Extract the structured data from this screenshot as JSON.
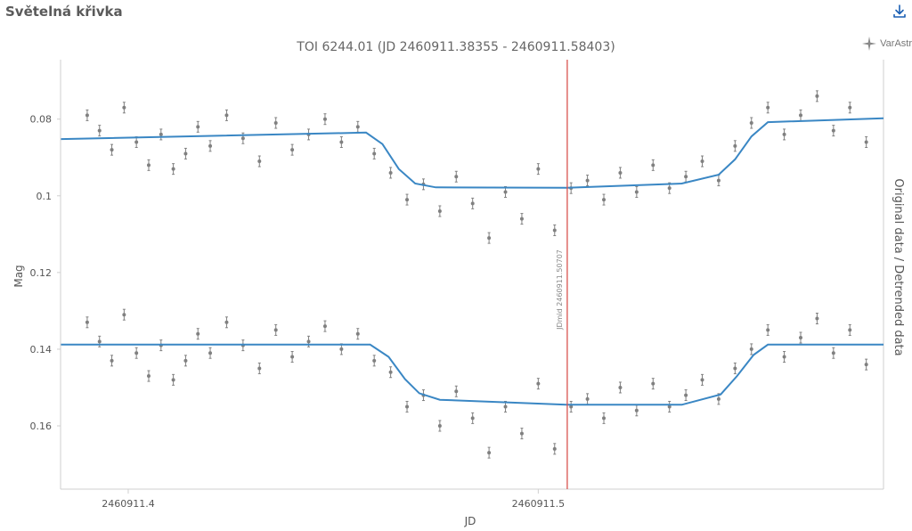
{
  "panel": {
    "title": "Světelná křivka",
    "download_icon": "download-icon"
  },
  "watermark": {
    "text": "VarAstr",
    "icon": "sparkle-star-icon"
  },
  "colors": {
    "points": "#808080",
    "model": "#3a87c4",
    "midline": "#d9534f",
    "axis_text": "#555555",
    "title_text": "#666666"
  },
  "chart_data": {
    "type": "scatter",
    "title": "TOI 6244.01 (JD 2460911.38355 - 2460911.58403)",
    "xlabel": "JD",
    "ylabel": "Mag",
    "y2label": "Original data / Detrended data",
    "xlim": [
      2460911.3835,
      2460911.5842
    ],
    "ylim": [
      0.0645,
      0.1765
    ],
    "y_inverted": true,
    "x_ticks": [
      2460911.4,
      2460911.5
    ],
    "x_tick_labels": [
      "2460911.4",
      "2460911.5"
    ],
    "y_ticks": [
      0.08,
      0.1,
      0.12,
      0.14,
      0.16
    ],
    "y_tick_labels": [
      "0.08",
      "0.1",
      "0.12",
      "0.14",
      "0.16"
    ],
    "grid": false,
    "error_bars": true,
    "mid_transit": {
      "x": 2460911.50707,
      "label": "JDmid 2460911.50707"
    },
    "series": [
      {
        "name": "Original data",
        "model": {
          "x": [
            2460911.3836,
            2460911.458,
            2460911.462,
            2460911.466,
            2460911.47,
            2460911.475,
            2460911.50707,
            2460911.535,
            2460911.544,
            2460911.548,
            2460911.552,
            2460911.556,
            2460911.5842
          ],
          "y": [
            0.0852,
            0.0835,
            0.0865,
            0.093,
            0.0968,
            0.0978,
            0.0979,
            0.0968,
            0.0945,
            0.0905,
            0.0845,
            0.0808,
            0.0798
          ]
        },
        "points": [
          {
            "x": 2460911.39,
            "y": 0.079
          },
          {
            "x": 2460911.393,
            "y": 0.083
          },
          {
            "x": 2460911.396,
            "y": 0.088
          },
          {
            "x": 2460911.399,
            "y": 0.077
          },
          {
            "x": 2460911.402,
            "y": 0.086
          },
          {
            "x": 2460911.405,
            "y": 0.092
          },
          {
            "x": 2460911.408,
            "y": 0.084
          },
          {
            "x": 2460911.411,
            "y": 0.093
          },
          {
            "x": 2460911.414,
            "y": 0.089
          },
          {
            "x": 2460911.417,
            "y": 0.082
          },
          {
            "x": 2460911.42,
            "y": 0.087
          },
          {
            "x": 2460911.424,
            "y": 0.079
          },
          {
            "x": 2460911.428,
            "y": 0.085
          },
          {
            "x": 2460911.432,
            "y": 0.091
          },
          {
            "x": 2460911.436,
            "y": 0.081
          },
          {
            "x": 2460911.44,
            "y": 0.088
          },
          {
            "x": 2460911.444,
            "y": 0.084
          },
          {
            "x": 2460911.448,
            "y": 0.08
          },
          {
            "x": 2460911.452,
            "y": 0.086
          },
          {
            "x": 2460911.456,
            "y": 0.082
          },
          {
            "x": 2460911.46,
            "y": 0.089
          },
          {
            "x": 2460911.464,
            "y": 0.094
          },
          {
            "x": 2460911.468,
            "y": 0.101
          },
          {
            "x": 2460911.472,
            "y": 0.097
          },
          {
            "x": 2460911.476,
            "y": 0.104
          },
          {
            "x": 2460911.48,
            "y": 0.095
          },
          {
            "x": 2460911.484,
            "y": 0.102
          },
          {
            "x": 2460911.488,
            "y": 0.111
          },
          {
            "x": 2460911.492,
            "y": 0.099
          },
          {
            "x": 2460911.496,
            "y": 0.106
          },
          {
            "x": 2460911.5,
            "y": 0.093
          },
          {
            "x": 2460911.504,
            "y": 0.109
          },
          {
            "x": 2460911.508,
            "y": 0.098
          },
          {
            "x": 2460911.512,
            "y": 0.096
          },
          {
            "x": 2460911.516,
            "y": 0.101
          },
          {
            "x": 2460911.52,
            "y": 0.094
          },
          {
            "x": 2460911.524,
            "y": 0.099
          },
          {
            "x": 2460911.528,
            "y": 0.092
          },
          {
            "x": 2460911.532,
            "y": 0.098
          },
          {
            "x": 2460911.536,
            "y": 0.095
          },
          {
            "x": 2460911.54,
            "y": 0.091
          },
          {
            "x": 2460911.544,
            "y": 0.096
          },
          {
            "x": 2460911.548,
            "y": 0.087
          },
          {
            "x": 2460911.552,
            "y": 0.081
          },
          {
            "x": 2460911.556,
            "y": 0.077
          },
          {
            "x": 2460911.56,
            "y": 0.084
          },
          {
            "x": 2460911.564,
            "y": 0.079
          },
          {
            "x": 2460911.568,
            "y": 0.074
          },
          {
            "x": 2460911.572,
            "y": 0.083
          },
          {
            "x": 2460911.576,
            "y": 0.077
          },
          {
            "x": 2460911.58,
            "y": 0.086
          }
        ]
      },
      {
        "name": "Detrended data",
        "model": {
          "x": [
            2460911.3836,
            2460911.459,
            2460911.4635,
            2460911.4675,
            2460911.471,
            2460911.476,
            2460911.50707,
            2460911.535,
            2460911.5445,
            2460911.5485,
            2460911.5525,
            2460911.556,
            2460911.5842
          ],
          "y": [
            0.1388,
            0.1388,
            0.142,
            0.1478,
            0.1515,
            0.1532,
            0.1545,
            0.1545,
            0.1518,
            0.147,
            0.1415,
            0.1388,
            0.1388
          ]
        },
        "points": [
          {
            "x": 2460911.39,
            "y": 0.133
          },
          {
            "x": 2460911.393,
            "y": 0.138
          },
          {
            "x": 2460911.396,
            "y": 0.143
          },
          {
            "x": 2460911.399,
            "y": 0.131
          },
          {
            "x": 2460911.402,
            "y": 0.141
          },
          {
            "x": 2460911.405,
            "y": 0.147
          },
          {
            "x": 2460911.408,
            "y": 0.139
          },
          {
            "x": 2460911.411,
            "y": 0.148
          },
          {
            "x": 2460911.414,
            "y": 0.143
          },
          {
            "x": 2460911.417,
            "y": 0.136
          },
          {
            "x": 2460911.42,
            "y": 0.141
          },
          {
            "x": 2460911.424,
            "y": 0.133
          },
          {
            "x": 2460911.428,
            "y": 0.139
          },
          {
            "x": 2460911.432,
            "y": 0.145
          },
          {
            "x": 2460911.436,
            "y": 0.135
          },
          {
            "x": 2460911.44,
            "y": 0.142
          },
          {
            "x": 2460911.444,
            "y": 0.138
          },
          {
            "x": 2460911.448,
            "y": 0.134
          },
          {
            "x": 2460911.452,
            "y": 0.14
          },
          {
            "x": 2460911.456,
            "y": 0.136
          },
          {
            "x": 2460911.46,
            "y": 0.143
          },
          {
            "x": 2460911.464,
            "y": 0.146
          },
          {
            "x": 2460911.468,
            "y": 0.155
          },
          {
            "x": 2460911.472,
            "y": 0.152
          },
          {
            "x": 2460911.476,
            "y": 0.16
          },
          {
            "x": 2460911.48,
            "y": 0.151
          },
          {
            "x": 2460911.484,
            "y": 0.158
          },
          {
            "x": 2460911.488,
            "y": 0.167
          },
          {
            "x": 2460911.492,
            "y": 0.155
          },
          {
            "x": 2460911.496,
            "y": 0.162
          },
          {
            "x": 2460911.5,
            "y": 0.149
          },
          {
            "x": 2460911.504,
            "y": 0.166
          },
          {
            "x": 2460911.508,
            "y": 0.155
          },
          {
            "x": 2460911.512,
            "y": 0.153
          },
          {
            "x": 2460911.516,
            "y": 0.158
          },
          {
            "x": 2460911.52,
            "y": 0.15
          },
          {
            "x": 2460911.524,
            "y": 0.156
          },
          {
            "x": 2460911.528,
            "y": 0.149
          },
          {
            "x": 2460911.532,
            "y": 0.155
          },
          {
            "x": 2460911.536,
            "y": 0.152
          },
          {
            "x": 2460911.54,
            "y": 0.148
          },
          {
            "x": 2460911.544,
            "y": 0.153
          },
          {
            "x": 2460911.548,
            "y": 0.145
          },
          {
            "x": 2460911.552,
            "y": 0.14
          },
          {
            "x": 2460911.556,
            "y": 0.135
          },
          {
            "x": 2460911.56,
            "y": 0.142
          },
          {
            "x": 2460911.564,
            "y": 0.137
          },
          {
            "x": 2460911.568,
            "y": 0.132
          },
          {
            "x": 2460911.572,
            "y": 0.141
          },
          {
            "x": 2460911.576,
            "y": 0.135
          },
          {
            "x": 2460911.58,
            "y": 0.144
          }
        ]
      }
    ]
  }
}
